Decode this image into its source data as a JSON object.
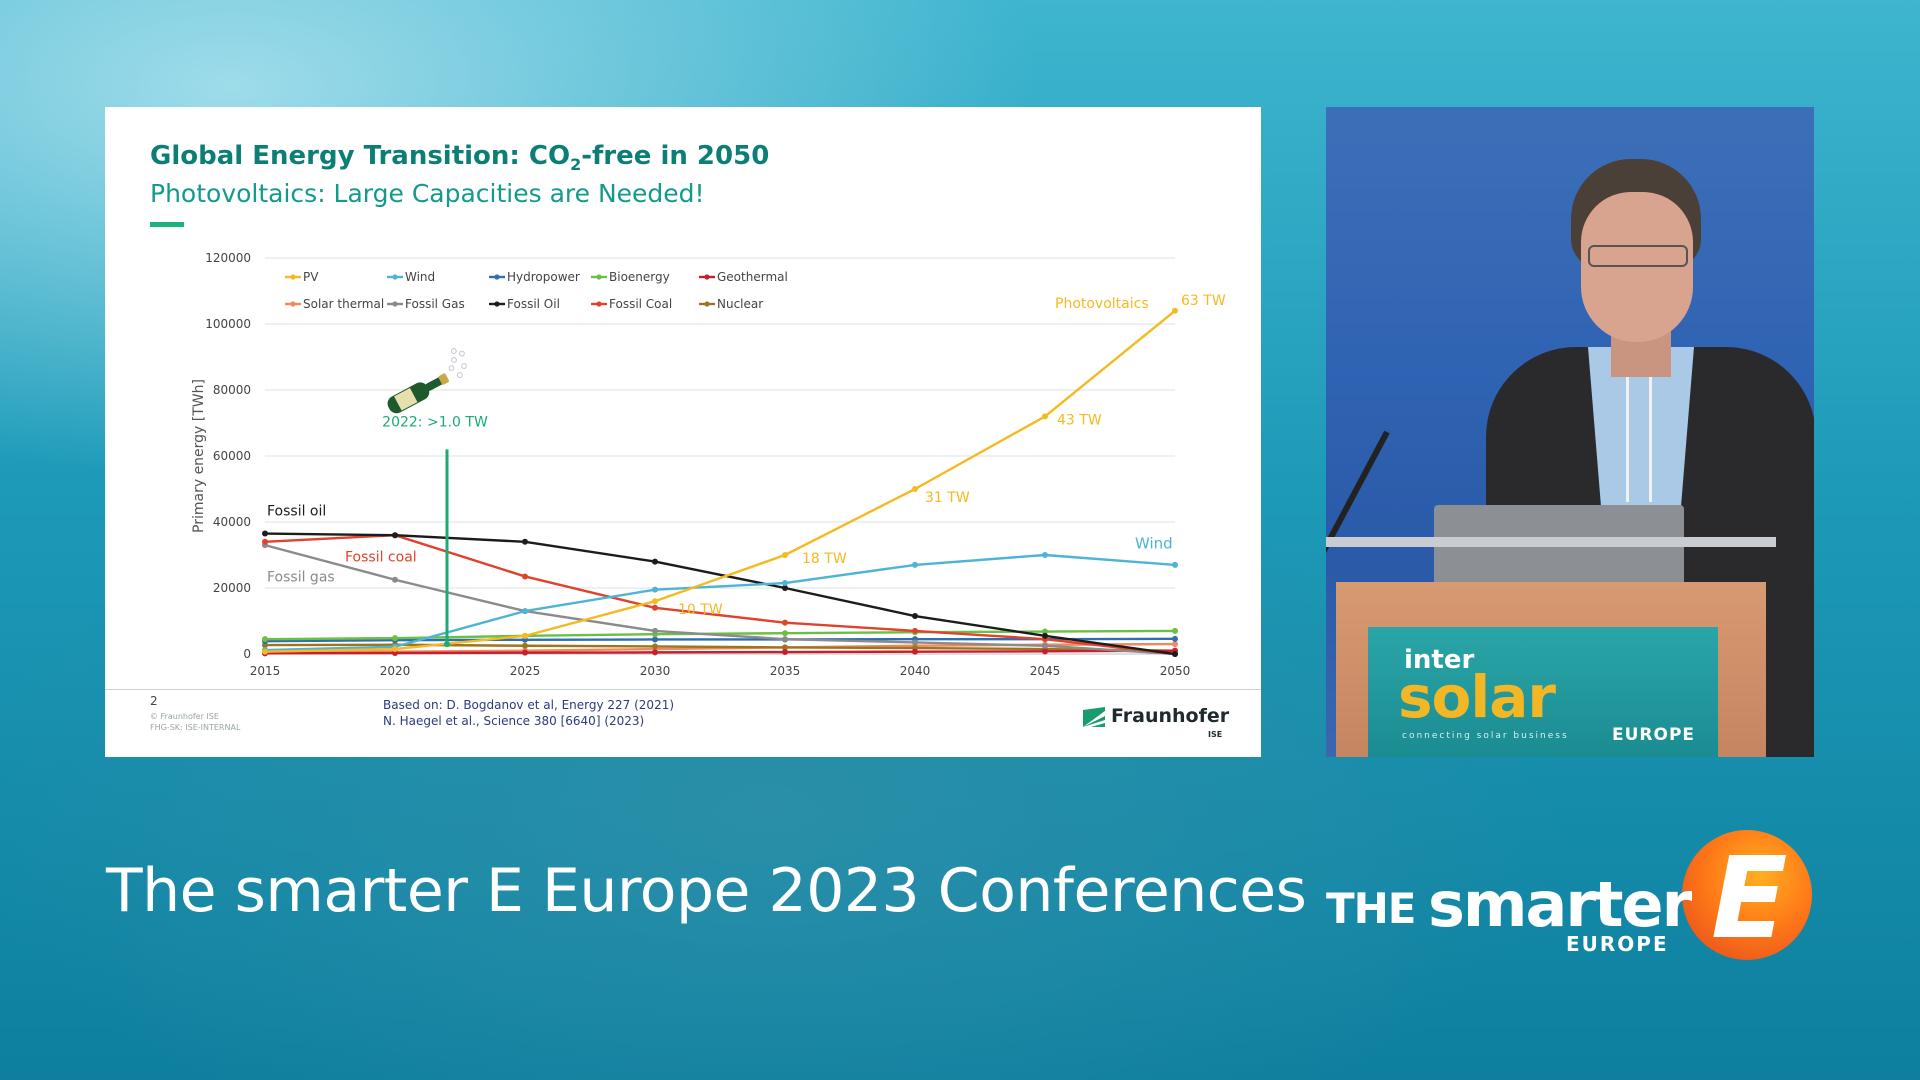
{
  "slide": {
    "title_main": "Global Energy Transition: CO",
    "title_sub": "2",
    "title_end": "-free in 2050",
    "subtitle": "Photovoltaics: Large Capacities are Needed!",
    "page_number": "2",
    "copyright": "© Fraunhofer ISE\nFHG-SK: ISE-INTERNAL",
    "source_line1": "Based on: D. Bogdanov et al, Energy 227 (2021)",
    "source_line2": "N. Haegel et al., Science 380 [6640] (2023)",
    "logo_text": "Fraunhofer",
    "logo_sub": "ISE"
  },
  "chart_data": {
    "type": "line",
    "title": "",
    "xlabel": "",
    "ylabel": "Primary energy [TWh]",
    "x": [
      2015,
      2020,
      2025,
      2030,
      2035,
      2040,
      2045,
      2050
    ],
    "xlim": [
      2015,
      2050
    ],
    "ylim": [
      0,
      120000
    ],
    "yticks": [
      "0",
      "20000",
      "40000",
      "60000",
      "80000",
      "100000",
      "120000"
    ],
    "grid": true,
    "legend_position": "top-left",
    "series": [
      {
        "name": "PV",
        "color": "#f5b921",
        "values": [
          700,
          1500,
          5500,
          16000,
          30000,
          50000,
          72000,
          104000
        ]
      },
      {
        "name": "Wind",
        "color": "#4db4d6",
        "values": [
          1200,
          2200,
          13000,
          19500,
          21500,
          27000,
          30000,
          27000
        ]
      },
      {
        "name": "Hydropower",
        "color": "#2f6fb0",
        "values": [
          3900,
          4200,
          4300,
          4400,
          4400,
          4500,
          4500,
          4600
        ]
      },
      {
        "name": "Bioenergy",
        "color": "#6abf45",
        "values": [
          4500,
          4800,
          5500,
          6000,
          6300,
          6600,
          6800,
          7000
        ]
      },
      {
        "name": "Geothermal",
        "color": "#c81e2e",
        "values": [
          200,
          300,
          400,
          500,
          600,
          700,
          800,
          1000
        ]
      },
      {
        "name": "Solar thermal",
        "color": "#f08a5d",
        "values": [
          600,
          700,
          1000,
          1500,
          2000,
          2500,
          2800,
          3000
        ]
      },
      {
        "name": "Fossil Gas",
        "color": "#8b8b8b",
        "values": [
          33000,
          22500,
          13000,
          7000,
          4500,
          3500,
          2500,
          0
        ]
      },
      {
        "name": "Fossil Oil",
        "color": "#1c1c1c",
        "values": [
          36500,
          36000,
          34000,
          28000,
          20000,
          11500,
          5500,
          0
        ]
      },
      {
        "name": "Fossil Coal",
        "color": "#e0432c",
        "values": [
          34000,
          36000,
          23500,
          14000,
          9500,
          7000,
          4500,
          0
        ]
      },
      {
        "name": "Nuclear",
        "color": "#a0741c",
        "values": [
          2700,
          2800,
          2500,
          2300,
          2000,
          1800,
          1500,
          1000
        ]
      }
    ],
    "annotations": {
      "pv_2030": "10 TW",
      "pv_2035": "18 TW",
      "pv_2040": "31 TW",
      "pv_2045": "43 TW",
      "pv_2050": "63 TW",
      "pv_label": "Photovoltaics",
      "wind_label": "Wind",
      "oil_label": "Fossil oil",
      "coal_label": "Fossil coal",
      "gas_label": "Fossil gas",
      "marker_label": "2022: >1.0 TW",
      "marker_year": 2022
    },
    "colors": {
      "marker": "#1bab73"
    }
  },
  "footer": {
    "conference_title": "The smarter E Europe 2023 Conferences",
    "brand_the": "THE",
    "brand_smarter": "smarter",
    "brand_europe": "EUROPE",
    "brand_e": "E"
  },
  "podium": {
    "inter": "inter",
    "solar": "solar",
    "tagline": "connecting solar business",
    "europe": "EUROPE"
  }
}
